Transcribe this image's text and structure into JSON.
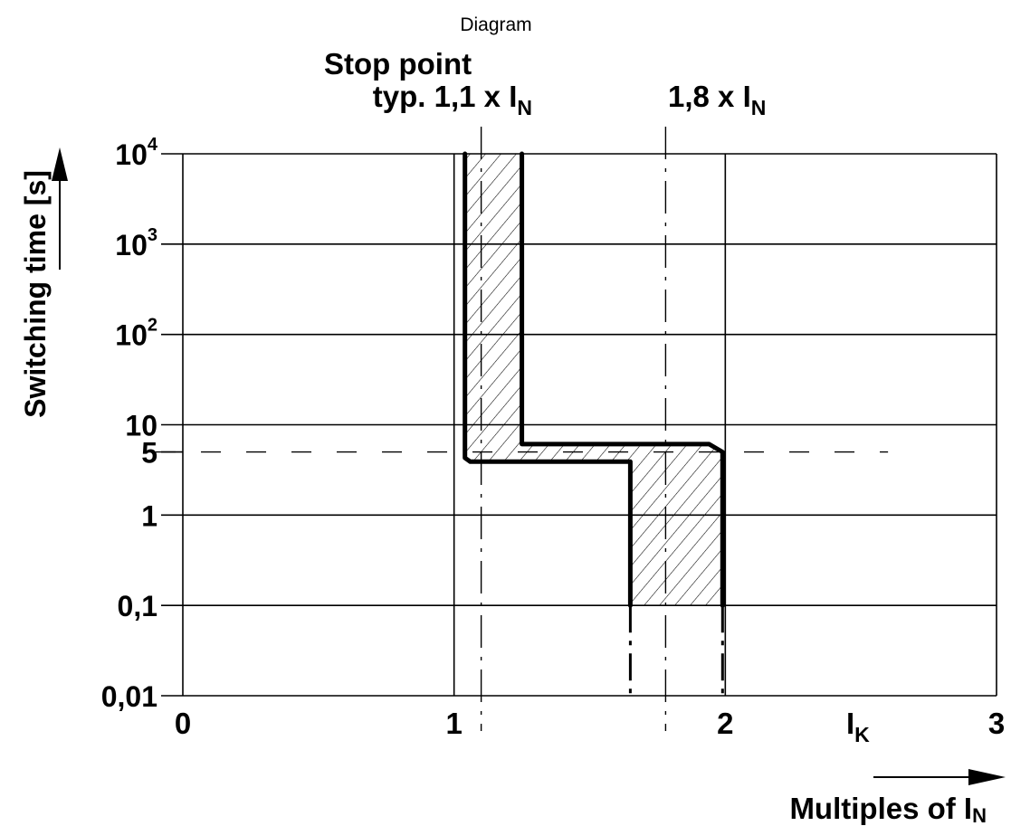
{
  "chart_data": {
    "type": "line",
    "title": "Diagram",
    "xlabel": {
      "prefix": "Multiples of I",
      "sub": "N"
    },
    "ylabel": "Switching time [s]",
    "x_axis_symbol": {
      "main": "I",
      "sub": "K"
    },
    "xlim": [
      0,
      3
    ],
    "x_ticks": [
      {
        "value": 0,
        "label": "0"
      },
      {
        "value": 1,
        "label": "1"
      },
      {
        "value": 2,
        "label": "2"
      },
      {
        "value": 3,
        "label": "3"
      }
    ],
    "y_scale": "log",
    "ylim": [
      0.01,
      10000
    ],
    "y_ticks": [
      {
        "value": 0.01,
        "label": "0,01",
        "sup": ""
      },
      {
        "value": 0.1,
        "label": "0,1",
        "sup": ""
      },
      {
        "value": 1,
        "label": "1",
        "sup": ""
      },
      {
        "value": 5,
        "label": "5",
        "sup": ""
      },
      {
        "value": 10,
        "label": "10",
        "sup": ""
      },
      {
        "value": 100,
        "label": "10",
        "sup": "2"
      },
      {
        "value": 1000,
        "label": "10",
        "sup": "3"
      },
      {
        "value": 10000,
        "label": "10",
        "sup": "4"
      }
    ],
    "grid": true,
    "series": [
      {
        "points": [
          [
            1.04,
            10000
          ],
          [
            1.04,
            4.3
          ],
          [
            1.06,
            3.9
          ],
          [
            1.65,
            3.9
          ],
          [
            1.65,
            0.1
          ]
        ]
      },
      {
        "points": [
          [
            1.25,
            10000
          ],
          [
            1.25,
            6.1
          ],
          [
            1.94,
            6.1
          ],
          [
            1.99,
            5.0
          ],
          [
            1.99,
            0.1
          ]
        ]
      }
    ],
    "extensions": [
      {
        "points": [
          [
            1.65,
            0.1
          ],
          [
            1.65,
            0.01
          ]
        ]
      },
      {
        "points": [
          [
            1.99,
            0.1
          ],
          [
            1.99,
            0.01
          ]
        ]
      }
    ],
    "hatched_region": {
      "points": [
        [
          1.04,
          10000
        ],
        [
          1.25,
          10000
        ],
        [
          1.25,
          6.1
        ],
        [
          1.94,
          6.1
        ],
        [
          1.99,
          5.0
        ],
        [
          1.99,
          0.1
        ],
        [
          1.65,
          0.1
        ],
        [
          1.65,
          3.9
        ],
        [
          1.06,
          3.9
        ],
        [
          1.04,
          4.3
        ]
      ]
    },
    "reference_lines": [
      {
        "orientation": "vertical",
        "x": 1.1,
        "label_main": "typ. 1,1 x I",
        "label_sub": "N",
        "label_line1": "Stop point"
      },
      {
        "orientation": "vertical",
        "x": 1.78,
        "label_main": "1,8 x I",
        "label_sub": "N",
        "label_line1": ""
      },
      {
        "orientation": "horizontal",
        "y": 5,
        "x_range": [
          -0.1,
          2.6
        ]
      }
    ]
  }
}
